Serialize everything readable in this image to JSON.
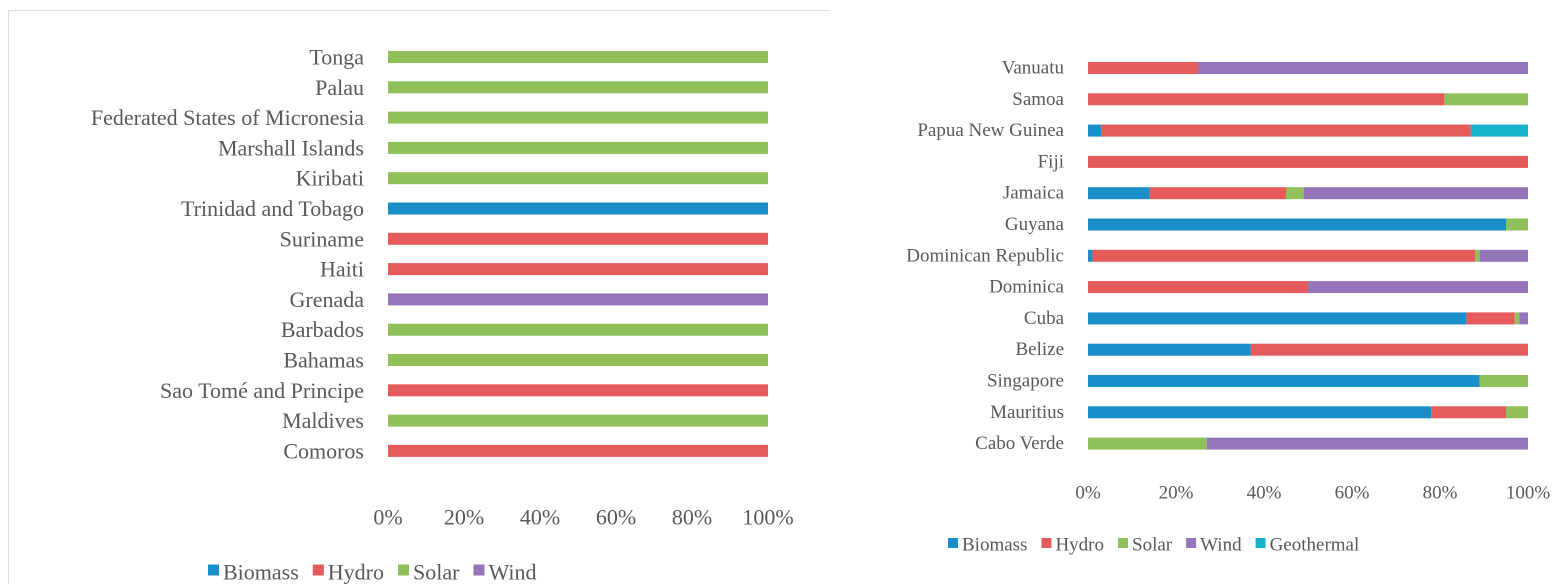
{
  "colors": {
    "Biomass": "#1a8ec9",
    "Hydro": "#e55b5b",
    "Solar": "#8fc05a",
    "Wind": "#9575b9",
    "Geothermal": "#17b3cc"
  },
  "chart_data": [
    {
      "type": "bar",
      "orientation": "horizontal",
      "stacked": true,
      "categories": [
        "Tonga",
        "Palau",
        "Federated States of Micronesia",
        "Marshall Islands",
        "Kiribati",
        "Trinidad and Tobago",
        "Suriname",
        "Haiti",
        "Grenada",
        "Barbados",
        "Bahamas",
        "Sao Tomé and Principe",
        "Maldives",
        "Comoros"
      ],
      "series": [
        {
          "name": "Biomass",
          "values": [
            0,
            0,
            0,
            0,
            0,
            100,
            0,
            0,
            0,
            0,
            0,
            0,
            0,
            0
          ]
        },
        {
          "name": "Hydro",
          "values": [
            0,
            0,
            0,
            0,
            0,
            0,
            100,
            100,
            0,
            0,
            0,
            100,
            0,
            100
          ]
        },
        {
          "name": "Solar",
          "values": [
            100,
            100,
            100,
            100,
            100,
            0,
            0,
            0,
            0,
            100,
            100,
            0,
            100,
            0
          ]
        },
        {
          "name": "Wind",
          "values": [
            0,
            0,
            0,
            0,
            0,
            0,
            0,
            0,
            100,
            0,
            0,
            0,
            0,
            0
          ]
        }
      ],
      "xticks": [
        "0%",
        "20%",
        "40%",
        "60%",
        "80%",
        "100%"
      ],
      "xlim": [
        0,
        100
      ],
      "grid": false,
      "legend_position": "bottom"
    },
    {
      "type": "bar",
      "orientation": "horizontal",
      "stacked": true,
      "categories": [
        "Vanuatu",
        "Samoa",
        "Papua New Guinea",
        "Fiji",
        "Jamaica",
        "Guyana",
        "Dominican Republic",
        "Dominica",
        "Cuba",
        "Belize",
        "Singapore",
        "Mauritius",
        "Cabo Verde"
      ],
      "series": [
        {
          "name": "Biomass",
          "values": [
            0,
            0,
            3,
            0,
            14,
            95,
            1,
            0,
            86,
            37,
            89,
            78,
            0
          ]
        },
        {
          "name": "Hydro",
          "values": [
            25,
            81,
            84,
            100,
            31,
            0,
            87,
            50,
            11,
            63,
            0,
            17,
            0
          ]
        },
        {
          "name": "Solar",
          "values": [
            0,
            19,
            0,
            0,
            4,
            5,
            1,
            0,
            1,
            0,
            11,
            5,
            27
          ]
        },
        {
          "name": "Wind",
          "values": [
            75,
            0,
            0,
            0,
            51,
            0,
            11,
            50,
            2,
            0,
            0,
            0,
            73
          ]
        },
        {
          "name": "Geothermal",
          "values": [
            0,
            0,
            13,
            0,
            0,
            0,
            0,
            0,
            0,
            0,
            0,
            0,
            0
          ]
        }
      ],
      "xticks": [
        "0%",
        "20%",
        "40%",
        "60%",
        "80%",
        "100%"
      ],
      "xlim": [
        0,
        100
      ],
      "grid": false,
      "legend_position": "bottom"
    }
  ]
}
